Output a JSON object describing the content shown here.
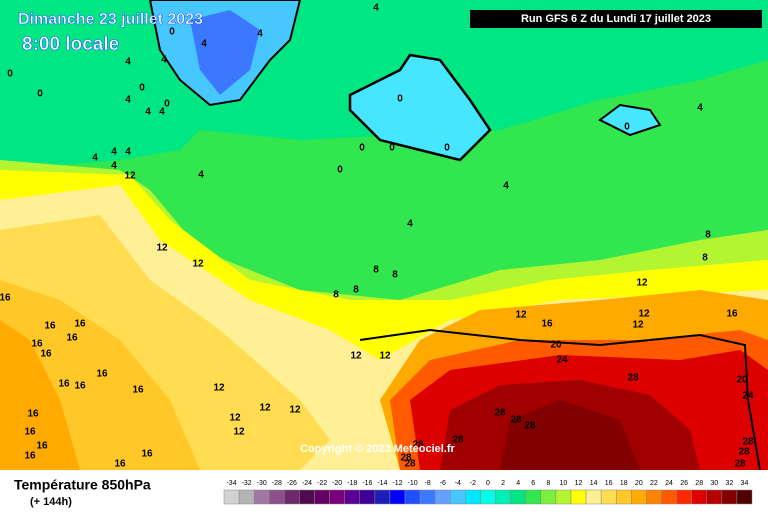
{
  "header": {
    "date": "Dimanche 23 juillet 2023",
    "time": "8:00 locale",
    "run": "Run GFS 6 Z du Lundi 17 juillet 2023"
  },
  "copyright": "Copyright © 2023 Meteociel.fr",
  "legend": {
    "title": "Température 850hPa",
    "lead": "(+ 144h)",
    "ticks": [
      -34,
      -32,
      -30,
      -28,
      -26,
      -24,
      -22,
      -20,
      -18,
      -16,
      -14,
      -12,
      -10,
      -8,
      -6,
      -4,
      -2,
      0,
      2,
      4,
      6,
      8,
      10,
      12,
      14,
      16,
      18,
      20,
      22,
      24,
      26,
      28,
      30,
      32,
      34
    ],
    "colors": [
      "#d2d2d2",
      "#b4b4b4",
      "#a078a0",
      "#8c508c",
      "#6e286e",
      "#500a50",
      "#640064",
      "#780078",
      "#5a0096",
      "#3c0096",
      "#1e1eb4",
      "#0000ff",
      "#1e50ff",
      "#3c78ff",
      "#64a0ff",
      "#46c8ff",
      "#00e6ff",
      "#00ffe6",
      "#00f0b4",
      "#00e682",
      "#32e650",
      "#78f03c",
      "#b4f532",
      "#ffff00",
      "#fff096",
      "#ffdc50",
      "#ffc828",
      "#ffaa00",
      "#ff8200",
      "#ff5a00",
      "#ff2800",
      "#dc0000",
      "#b40000",
      "#820000",
      "#500000"
    ]
  },
  "contour_labels": [
    4,
    4,
    0,
    4,
    4,
    0,
    4,
    0,
    0,
    0,
    4,
    4,
    4,
    0,
    0,
    0,
    0,
    0,
    4,
    0,
    4,
    4,
    4,
    4,
    12,
    4,
    4,
    4,
    8,
    8,
    12,
    12,
    8,
    8,
    8,
    8,
    12,
    16,
    16,
    16,
    16,
    16,
    16,
    12,
    16,
    12,
    12,
    16,
    20,
    24,
    12,
    12,
    16,
    16,
    16,
    16,
    28,
    20,
    24,
    12,
    12,
    12,
    12,
    12,
    16,
    28,
    28,
    28,
    28,
    28,
    16,
    16,
    16,
    28,
    28,
    28,
    28,
    16,
    16,
    28
  ]
}
